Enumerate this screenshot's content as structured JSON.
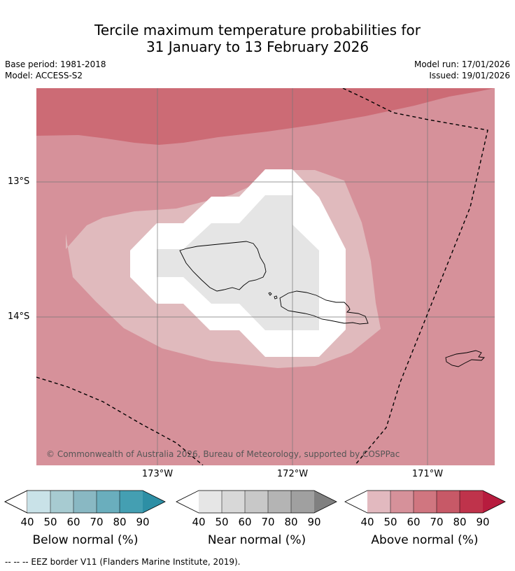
{
  "title_line1": "Tercile maximum temperature probabilities for",
  "title_line2": "31 January to 13 February 2026",
  "base_period": "Base period: 1981-2018",
  "model": "Model: ACCESS-S2",
  "model_run": "Model run: 17/01/2026",
  "issued": "Issued: 19/01/2026",
  "copyright": "© Commonwealth of Australia 2026, Bureau of Meteorology, supported by COSPPac",
  "lon_labels": [
    "173°W",
    "172°W",
    "171°W"
  ],
  "lat_labels": [
    "13°S",
    "14°S"
  ],
  "colorbars": [
    {
      "label": "Below normal (%)",
      "ticks": [
        "40",
        "50",
        "60",
        "70",
        "80",
        "90"
      ],
      "colors": [
        "#ffffff",
        "#c9e2e8",
        "#a7cbd1",
        "#89b8c3",
        "#6aaebd",
        "#449fb2",
        "#2d8fa5"
      ]
    },
    {
      "label": "Near normal (%)",
      "ticks": [
        "40",
        "50",
        "60",
        "70",
        "80",
        "90"
      ],
      "colors": [
        "#ffffff",
        "#e6e6e6",
        "#d8d8d8",
        "#c8c8c8",
        "#b4b4b4",
        "#a0a0a0",
        "#808080"
      ]
    },
    {
      "label": "Above normal (%)",
      "ticks": [
        "40",
        "50",
        "60",
        "70",
        "80",
        "90"
      ],
      "colors": [
        "#ffffff",
        "#e2b9bf",
        "#d6919a",
        "#d07680",
        "#c75967",
        "#bf334b",
        "#b71c3e"
      ]
    }
  ],
  "footer": "--  --  -- EEZ border V11 (Flanders Marine Institute, 2019).",
  "colors": {
    "above_50_60": "#d6919a",
    "above_60_70": "#cc6b75",
    "above_40_50": "#e0babd",
    "near_40_50": "#e5e5e5"
  }
}
